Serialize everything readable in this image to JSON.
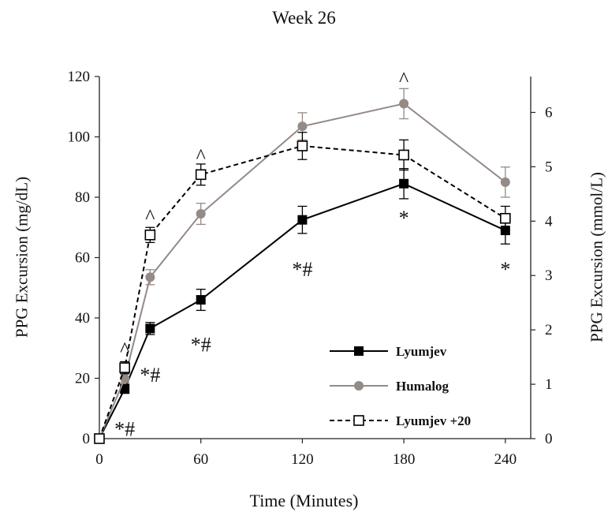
{
  "chart_data": {
    "type": "line",
    "title": "Week 26",
    "xlabel": "Time (Minutes)",
    "ylabel": "PPG Excursion (mg/dL)",
    "ylabel_right": "PPG Excursion (mmol/L)",
    "x": [
      0,
      15,
      30,
      60,
      120,
      180,
      240
    ],
    "xticks": [
      0,
      60,
      120,
      180,
      240
    ],
    "xlim": [
      0,
      255
    ],
    "ylim": [
      0,
      120
    ],
    "yticks": [
      0,
      20,
      40,
      60,
      80,
      100,
      120
    ],
    "ylim_right": [
      0,
      6.66
    ],
    "yticks_right": [
      0,
      1,
      2,
      3,
      4,
      5,
      6
    ],
    "grid": false,
    "legend_position": "bottom-right",
    "series": [
      {
        "name": "Lyumjev",
        "color": "#000000",
        "line": "solid",
        "marker": "filled-square",
        "values": [
          0,
          16.5,
          36.5,
          46,
          72.5,
          84.5,
          69
        ],
        "errors": [
          0,
          1.5,
          2.0,
          3.5,
          4.5,
          5.0,
          4.5
        ]
      },
      {
        "name": "Humalog",
        "color": "#948a86",
        "line": "solid",
        "marker": "filled-circle",
        "values": [
          0,
          20,
          53.5,
          74.5,
          103.5,
          111,
          85
        ],
        "errors": [
          0,
          1.5,
          2.5,
          3.5,
          4.5,
          5.0,
          5.0
        ]
      },
      {
        "name": "Lyumjev +20",
        "color": "#000000",
        "line": "dashed",
        "marker": "open-square",
        "values": [
          0,
          23.5,
          67.5,
          87.5,
          97,
          94,
          73
        ],
        "errors": [
          0,
          2.0,
          2.5,
          3.5,
          4.5,
          5.0,
          4.0
        ]
      }
    ],
    "annotations": [
      {
        "text": "^",
        "x": 15,
        "y": 30.5
      },
      {
        "text": "^",
        "x": 30,
        "y": 74.5
      },
      {
        "text": "^",
        "x": 60,
        "y": 94.5
      },
      {
        "text": "^",
        "x": 180,
        "y": 120
      },
      {
        "text": "*#",
        "x": 15,
        "y": 4
      },
      {
        "text": "*#",
        "x": 30,
        "y": 22
      },
      {
        "text": "*#",
        "x": 60,
        "y": 32
      },
      {
        "text": "*#",
        "x": 120,
        "y": 57
      },
      {
        "text": "*",
        "x": 180,
        "y": 74
      },
      {
        "text": "*",
        "x": 240,
        "y": 57
      }
    ]
  }
}
